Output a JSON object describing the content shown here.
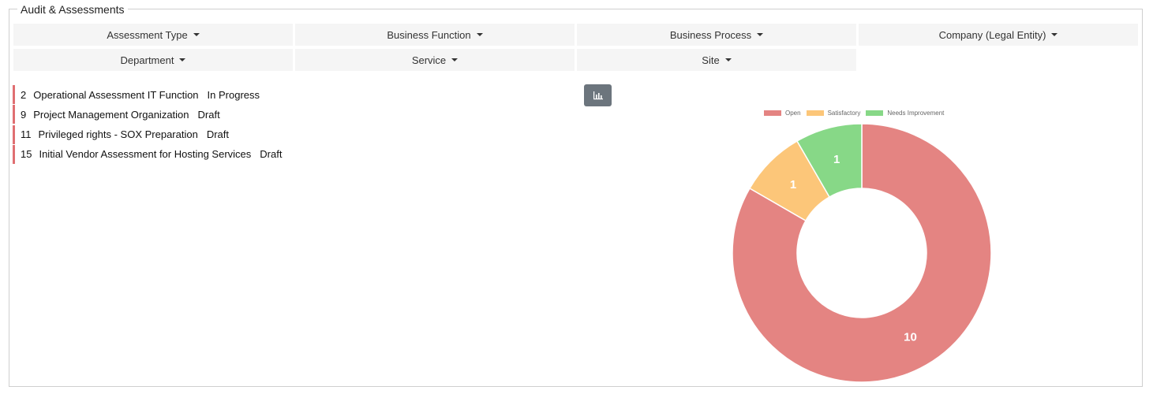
{
  "panel": {
    "title": "Audit & Assessments"
  },
  "filters": [
    {
      "label": "Assessment Type"
    },
    {
      "label": "Business Function"
    },
    {
      "label": "Business Process"
    },
    {
      "label": "Company (Legal Entity)"
    },
    {
      "label": "Department"
    },
    {
      "label": "Service"
    },
    {
      "label": "Site"
    }
  ],
  "assessments": [
    {
      "id": "2",
      "name": "Operational Assessment IT Function",
      "status": "In Progress"
    },
    {
      "id": "9",
      "name": "Project Management Organization",
      "status": "Draft"
    },
    {
      "id": "11",
      "name": "Privileged rights - SOX Preparation",
      "status": "Draft"
    },
    {
      "id": "15",
      "name": "Initial Vendor Assessment for Hosting Services",
      "status": "Draft"
    }
  ],
  "toolbar": {
    "chart_icon": "bar-chart-icon"
  },
  "colors": {
    "open": "#e48482",
    "satisfactory": "#fcc679",
    "needs_improvement": "#87d887",
    "item_accent": "#e06f72"
  },
  "chart_data": {
    "type": "pie",
    "variant": "doughnut",
    "categories": [
      "Open",
      "Satisfactory",
      "Needs Improvement"
    ],
    "values": [
      10,
      1,
      1
    ],
    "colors": [
      "#e48482",
      "#fcc679",
      "#87d887"
    ],
    "data_labels": [
      "10",
      "1",
      "1"
    ],
    "legend": "top"
  }
}
